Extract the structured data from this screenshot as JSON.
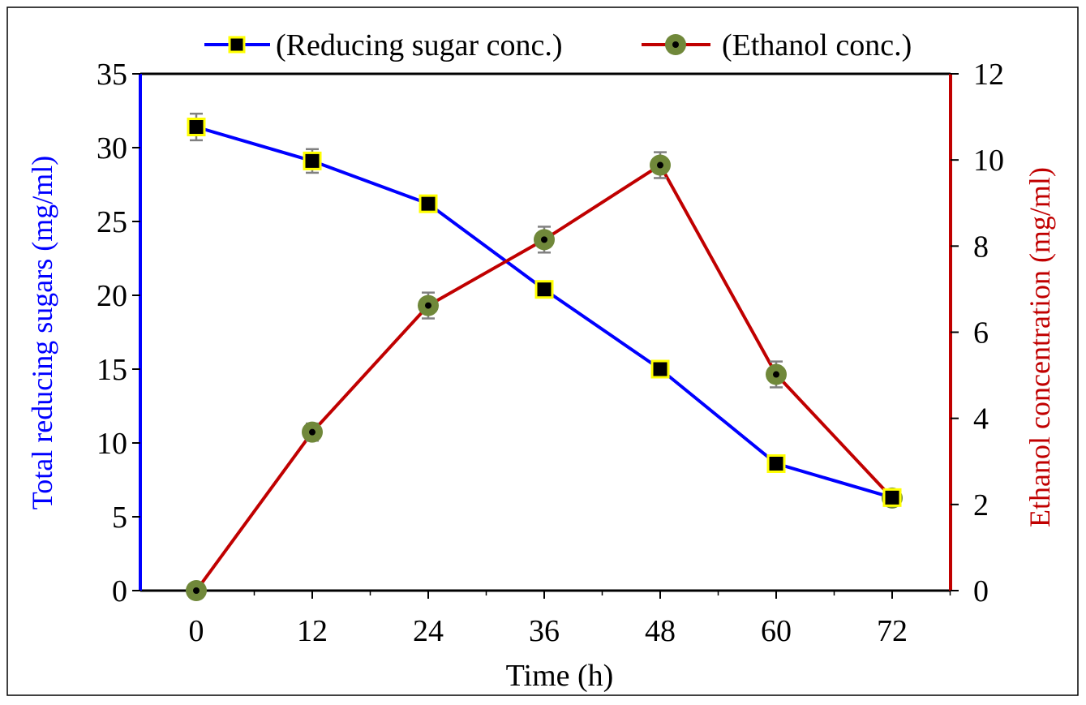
{
  "chart_data": {
    "type": "line",
    "title": "",
    "x": [
      0,
      12,
      24,
      36,
      48,
      60,
      72
    ],
    "x_ticks": [
      "0",
      "12",
      "24",
      "36",
      "48",
      "60",
      "72"
    ],
    "xlabel": "Time (h)",
    "ylabel_left": "Total reducing sugars (mg/ml)",
    "ylabel_right": "Ethanol concentration (mg/ml)",
    "ylim_left": [
      0,
      35
    ],
    "ylim_right": [
      0,
      12
    ],
    "yticks_left": [
      "0",
      "5",
      "10",
      "15",
      "20",
      "25",
      "30",
      "35"
    ],
    "yticks_right": [
      "0",
      "2",
      "4",
      "6",
      "8",
      "10",
      "12"
    ],
    "series": [
      {
        "name": "(Reducing sugar conc.)",
        "axis": "left",
        "color": "#0000ff",
        "marker": "square",
        "marker_fill": "#000000",
        "marker_edge": "#ffff00",
        "values": [
          31.4,
          29.1,
          26.2,
          20.4,
          15.0,
          8.6,
          6.3
        ],
        "errors": [
          0.9,
          0.8,
          0.3,
          0.3,
          0.3,
          0.3,
          0.3
        ]
      },
      {
        "name": "(Ethanol conc.)",
        "axis": "right",
        "color": "#c00000",
        "marker": "circle",
        "marker_fill": "#70883a",
        "marker_center": "#000000",
        "values": [
          0.0,
          3.68,
          6.62,
          8.15,
          9.88,
          5.02,
          2.15
        ],
        "errors": [
          0.0,
          0.2,
          0.3,
          0.3,
          0.3,
          0.3,
          0.1
        ]
      }
    ],
    "legend": "top-center",
    "grid": false,
    "axis_colors": {
      "left": "#0000ff",
      "right": "#c00000",
      "frame": "#000000",
      "errorbar": "#808080"
    }
  }
}
